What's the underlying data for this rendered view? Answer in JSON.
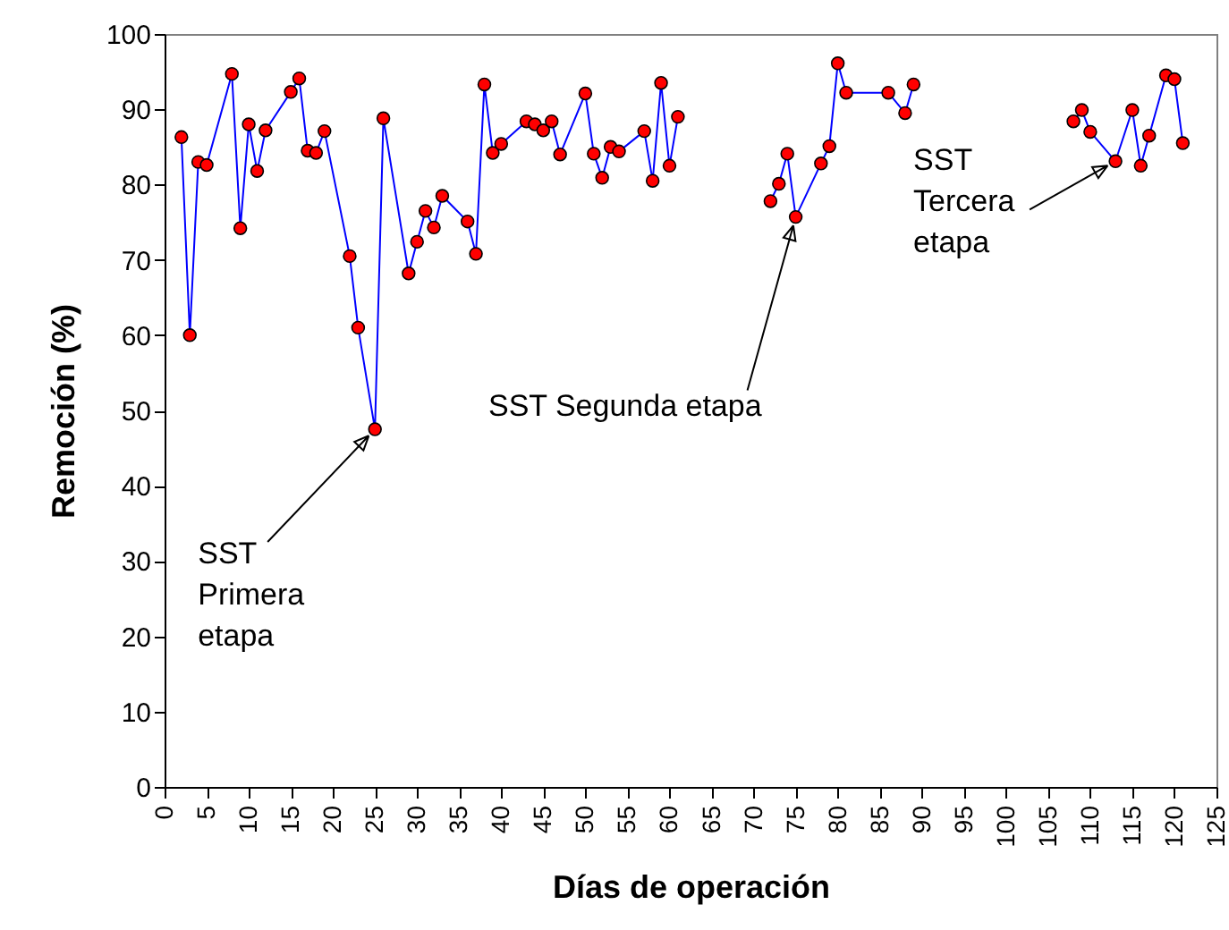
{
  "chart_data": {
    "type": "line",
    "xlabel": "Días de operación",
    "ylabel": "Remoción (%)",
    "x": [
      2,
      3,
      4,
      5,
      8,
      9,
      10,
      11,
      12,
      15,
      16,
      17,
      18,
      19,
      22,
      23,
      25,
      26,
      29,
      30,
      31,
      32,
      33,
      36,
      37,
      38,
      39,
      40,
      43,
      44,
      45,
      46,
      47,
      50,
      51,
      52,
      53,
      54,
      57,
      58,
      59,
      60,
      61,
      66,
      72,
      73,
      74,
      75,
      78,
      79,
      80,
      81,
      86,
      88,
      89,
      100,
      108,
      109,
      110,
      113,
      115,
      116,
      117,
      119,
      120,
      121
    ],
    "series": [
      {
        "color": "#0000ff",
        "values": [
          86.3,
          60.0,
          83.0,
          82.6,
          94.7,
          74.2,
          88.0,
          81.8,
          87.2,
          92.3,
          94.1,
          84.5,
          84.2,
          87.1,
          70.5,
          61.0,
          47.5,
          88.8,
          68.2,
          72.4,
          76.5,
          74.3,
          78.5,
          75.1,
          70.8,
          93.3,
          84.2,
          85.4,
          88.4,
          88.0,
          87.2,
          88.4,
          84.0,
          92.1,
          84.1,
          80.9,
          85.0,
          84.4,
          87.1,
          80.5,
          93.5,
          82.5,
          89.0,
          null,
          77.8,
          80.1,
          84.1,
          75.7,
          82.8,
          85.1,
          96.1,
          92.2,
          92.2,
          89.5,
          93.3,
          null,
          88.4,
          89.9,
          87.0,
          83.1,
          89.9,
          82.5,
          86.5,
          94.5,
          94.0,
          85.5
        ]
      }
    ],
    "xlim": [
      0,
      125
    ],
    "xticks": [
      0,
      5,
      10,
      15,
      20,
      25,
      30,
      35,
      40,
      45,
      50,
      55,
      60,
      65,
      70,
      75,
      80,
      85,
      90,
      95,
      100,
      105,
      110,
      115,
      120,
      125
    ],
    "ylim": [
      0,
      100
    ],
    "yticks": [
      0,
      10,
      20,
      30,
      40,
      50,
      60,
      70,
      80,
      90,
      100
    ],
    "marker": "circle",
    "line_style": "solid",
    "grid": false,
    "annotations": [
      {
        "text": "SST\nPrimera\netapa",
        "x": 25,
        "y": 47.5
      },
      {
        "text": "SST  Segunda etapa",
        "x": 75,
        "y": 75.7
      },
      {
        "text": "SST\nTercera\netapa",
        "x": 113,
        "y": 83.1
      }
    ]
  }
}
